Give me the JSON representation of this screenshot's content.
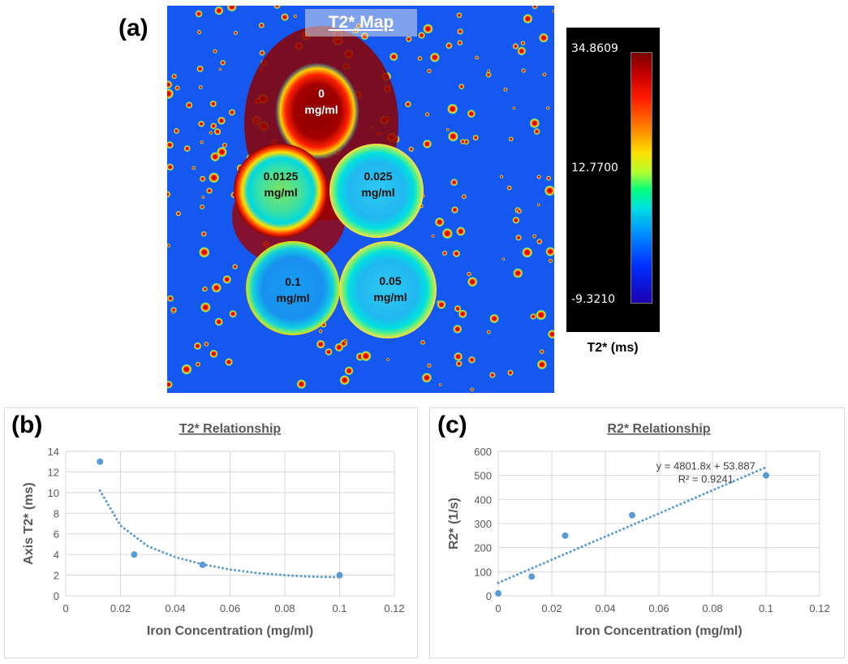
{
  "panel_a": {
    "label": "(a)",
    "title": "T2* Map",
    "samples": [
      {
        "line1": "0",
        "line2": "mg/ml"
      },
      {
        "line1": "0.0125",
        "line2": "mg/ml"
      },
      {
        "line1": "0.025",
        "line2": "mg/ml"
      },
      {
        "line1": "0.1",
        "line2": "mg/ml"
      },
      {
        "line1": "0.05",
        "line2": "mg/ml"
      }
    ],
    "colorbar": {
      "max": "34.8609",
      "mid": "12.7700",
      "min": "-9.3210",
      "label": "T2* (ms)"
    }
  },
  "panel_b": {
    "label": "(b)"
  },
  "panel_c": {
    "label": "(c)"
  },
  "chart_data": [
    {
      "type": "scatter",
      "title": "T2* Relationship",
      "xlabel": "Iron Concentration (mg/ml)",
      "ylabel": "Axis T2* (ms)",
      "xlim": [
        0,
        0.12
      ],
      "ylim": [
        0,
        14
      ],
      "xticks": [
        0,
        0.02,
        0.04,
        0.06,
        0.08,
        0.1,
        0.12
      ],
      "yticks": [
        0,
        2,
        4,
        6,
        8,
        10,
        12,
        14
      ],
      "xtick_labels": [
        "0",
        "0.02",
        "0.04",
        "0.06",
        "0.08",
        "0.1",
        "0.12"
      ],
      "ytick_labels": [
        "0",
        "2",
        "4",
        "6",
        "8",
        "10",
        "12",
        "14"
      ],
      "grid": true,
      "series": [
        {
          "name": "T2*",
          "x": [
            0.0125,
            0.025,
            0.05,
            0.1
          ],
          "y": [
            13,
            4,
            3,
            2
          ]
        }
      ],
      "trendline": {
        "kind": "polynomial-fit",
        "x": [
          0.0125,
          0.02,
          0.03,
          0.04,
          0.05,
          0.06,
          0.07,
          0.08,
          0.09,
          0.1
        ],
        "y": [
          10.2,
          6.8,
          4.8,
          3.75,
          3.05,
          2.55,
          2.2,
          2.0,
          1.85,
          1.8
        ]
      }
    },
    {
      "type": "scatter",
      "title": "R2* Relationship",
      "xlabel": "Iron Concentration (mg/ml)",
      "ylabel": "R2* (1/s)",
      "xlim": [
        0,
        0.12
      ],
      "ylim": [
        0,
        600
      ],
      "xticks": [
        0,
        0.02,
        0.04,
        0.06,
        0.08,
        0.1,
        0.12
      ],
      "yticks": [
        0,
        100,
        200,
        300,
        400,
        500,
        600
      ],
      "xtick_labels": [
        "0",
        "0.02",
        "0.04",
        "0.06",
        "0.08",
        "0.1",
        "0.12"
      ],
      "ytick_labels": [
        "0",
        "100",
        "200",
        "300",
        "400",
        "500",
        "600"
      ],
      "grid": true,
      "series": [
        {
          "name": "R2*",
          "x": [
            0,
            0.0125,
            0.025,
            0.05,
            0.1
          ],
          "y": [
            10,
            80,
            250,
            335,
            500
          ]
        }
      ],
      "trendline": {
        "kind": "linear",
        "x": [
          0,
          0.1
        ],
        "y": [
          53.887,
          534.067
        ]
      },
      "equation": "y = 4801.8x + 53.887",
      "r_squared": "R² = 0.9241"
    }
  ]
}
